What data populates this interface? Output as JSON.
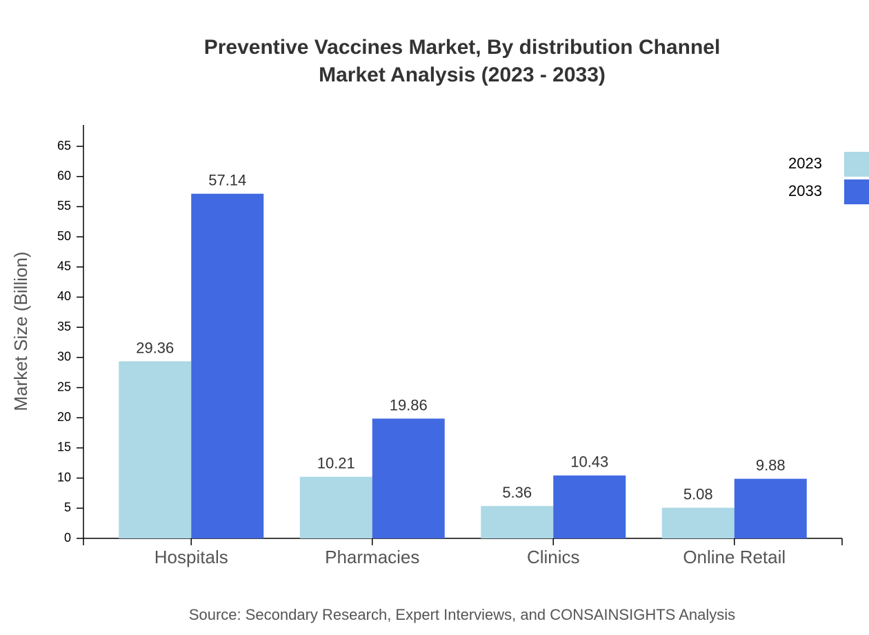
{
  "chart_data": {
    "type": "bar",
    "title": [
      "Preventive Vaccines Market, By distribution Channel",
      "Market Analysis (2023 - 2033)"
    ],
    "y_label": "Market Size (Billion)",
    "source": "Source: Secondary Research, Expert Interviews, and CONSAINSIGHTS Analysis",
    "categories": [
      "Hospitals",
      "Pharmacies",
      "Clinics",
      "Online Retail"
    ],
    "series": [
      {
        "name": "2023",
        "color": "#add8e6",
        "values": [
          29.36,
          10.21,
          5.36,
          5.08
        ]
      },
      {
        "name": "2033",
        "color": "#4169e1",
        "values": [
          57.14,
          19.86,
          10.43,
          9.88
        ]
      }
    ],
    "ylim": [
      0,
      68.55
    ],
    "yticks": [
      0,
      5,
      10,
      15,
      20,
      25,
      30,
      35,
      40,
      45,
      50,
      55,
      60,
      65
    ],
    "grid": false,
    "legend": "top-right"
  }
}
